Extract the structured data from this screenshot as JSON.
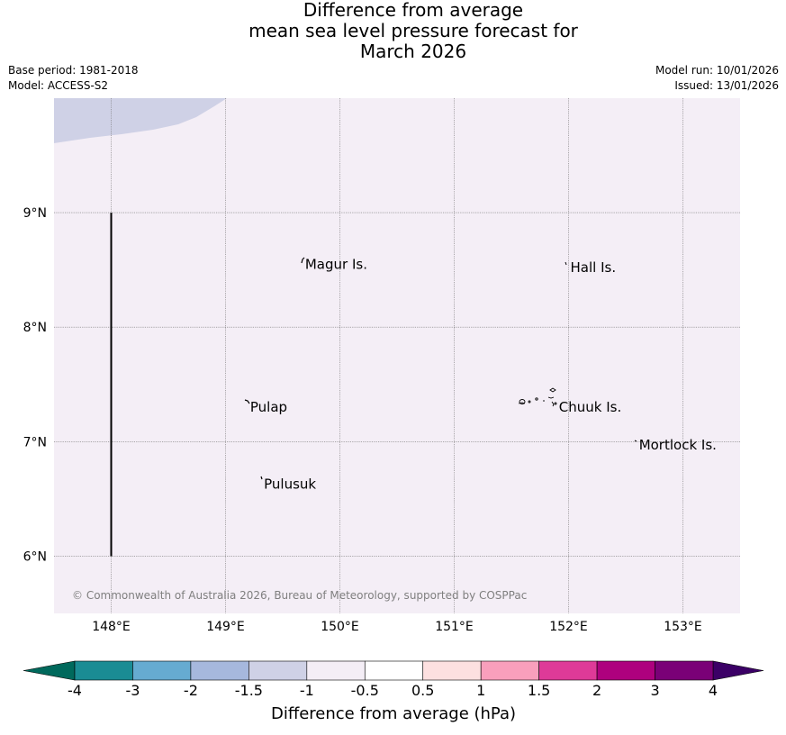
{
  "title": {
    "line1": "Difference from average",
    "line2": "mean sea level pressure forecast for",
    "line3": "March 2026"
  },
  "meta": {
    "base_period": "Base period: 1981-2018",
    "model": "Model: ACCESS-S2",
    "model_run": "Model run: 10/01/2026",
    "issued": "Issued: 13/01/2026"
  },
  "map": {
    "lon_range": [
      147.5,
      153.5
    ],
    "lat_range": [
      5.5,
      10.0
    ],
    "background_color": "#f4eef6",
    "anomaly_patch_color": "#cfd1e6",
    "lon_ticks": [
      {
        "value": 148,
        "label": "148°E"
      },
      {
        "value": 149,
        "label": "149°E"
      },
      {
        "value": 150,
        "label": "150°E"
      },
      {
        "value": 151,
        "label": "151°E"
      },
      {
        "value": 152,
        "label": "152°E"
      },
      {
        "value": 153,
        "label": "153°E"
      }
    ],
    "lat_ticks": [
      {
        "value": 9,
        "label": "9°N"
      },
      {
        "value": 8,
        "label": "8°N"
      },
      {
        "value": 7,
        "label": "7°N"
      },
      {
        "value": 6,
        "label": "6°N"
      }
    ],
    "places": [
      {
        "name": "Magur Is.",
        "lon": 149.68,
        "lat": 8.55
      },
      {
        "name": "Hall Is.",
        "lon": 152.0,
        "lat": 8.52
      },
      {
        "name": "Pulap",
        "lon": 149.2,
        "lat": 7.3
      },
      {
        "name": "Chuuk Is.",
        "lon": 151.9,
        "lat": 7.3
      },
      {
        "name": "Mortlock Is.",
        "lon": 152.6,
        "lat": 6.97
      },
      {
        "name": "Pulusuk",
        "lon": 149.32,
        "lat": 6.63
      }
    ],
    "boundary_line": {
      "lon": 148.0,
      "lat_from": 6.0,
      "lat_to": 9.0
    },
    "copyright": "© Commonwealth of Australia 2026, Bureau of Meteorology, supported by COSPPac"
  },
  "colorbar": {
    "title": "Difference from average (hPa)",
    "labels": [
      "-4",
      "-3",
      "-2",
      "-1.5",
      "-1",
      "-0.5",
      "0.5",
      "1",
      "1.5",
      "2",
      "3",
      "4"
    ],
    "under_color": "#00695c",
    "over_color": "#3b0066",
    "colors": [
      "#1a8c94",
      "#66abd1",
      "#a6b8dd",
      "#cfd1e6",
      "#f4eef6",
      "#ffffff",
      "#fde0e0",
      "#f99fbc",
      "#de3a98",
      "#ae017e",
      "#7a0177"
    ]
  }
}
